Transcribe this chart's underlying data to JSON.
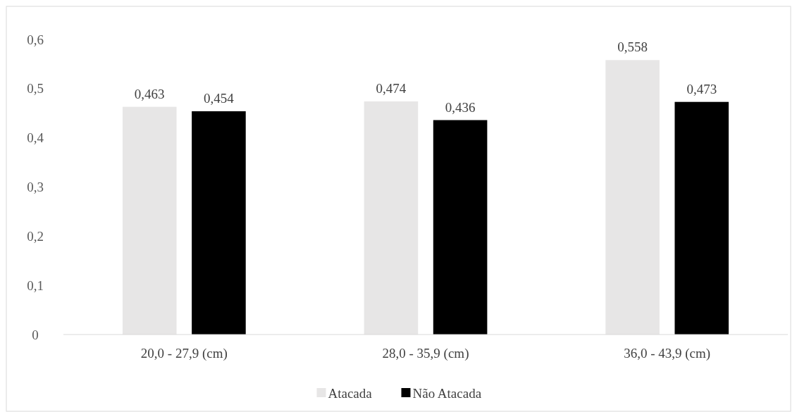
{
  "chart_data": {
    "type": "bar",
    "categories": [
      "20,0 - 27,9 (cm)",
      "28,0 - 35,9 (cm)",
      "36,0 - 43,9 (cm)"
    ],
    "series": [
      {
        "name": "Atacada",
        "color": "#e7e6e6",
        "values": [
          0.463,
          0.474,
          0.558
        ],
        "value_labels": [
          "0,463",
          "0,474",
          "0,558"
        ]
      },
      {
        "name": "Não Atacada",
        "color": "#000000",
        "values": [
          0.454,
          0.436,
          0.473
        ],
        "value_labels": [
          "0,454",
          "0,436",
          "0,473"
        ]
      }
    ],
    "ylim": [
      0,
      0.6
    ],
    "yticks": [
      0,
      {
        "value": 0.1,
        "label": "0,1"
      },
      {
        "value": 0.2,
        "label": "0,2"
      },
      {
        "value": 0.3,
        "label": "0,3"
      },
      {
        "value": 0.4,
        "label": "0,4"
      },
      {
        "value": 0.5,
        "label": "0,5"
      },
      {
        "value": 0.6,
        "label": "0,6"
      }
    ],
    "grid": false,
    "legend": "bottom"
  }
}
